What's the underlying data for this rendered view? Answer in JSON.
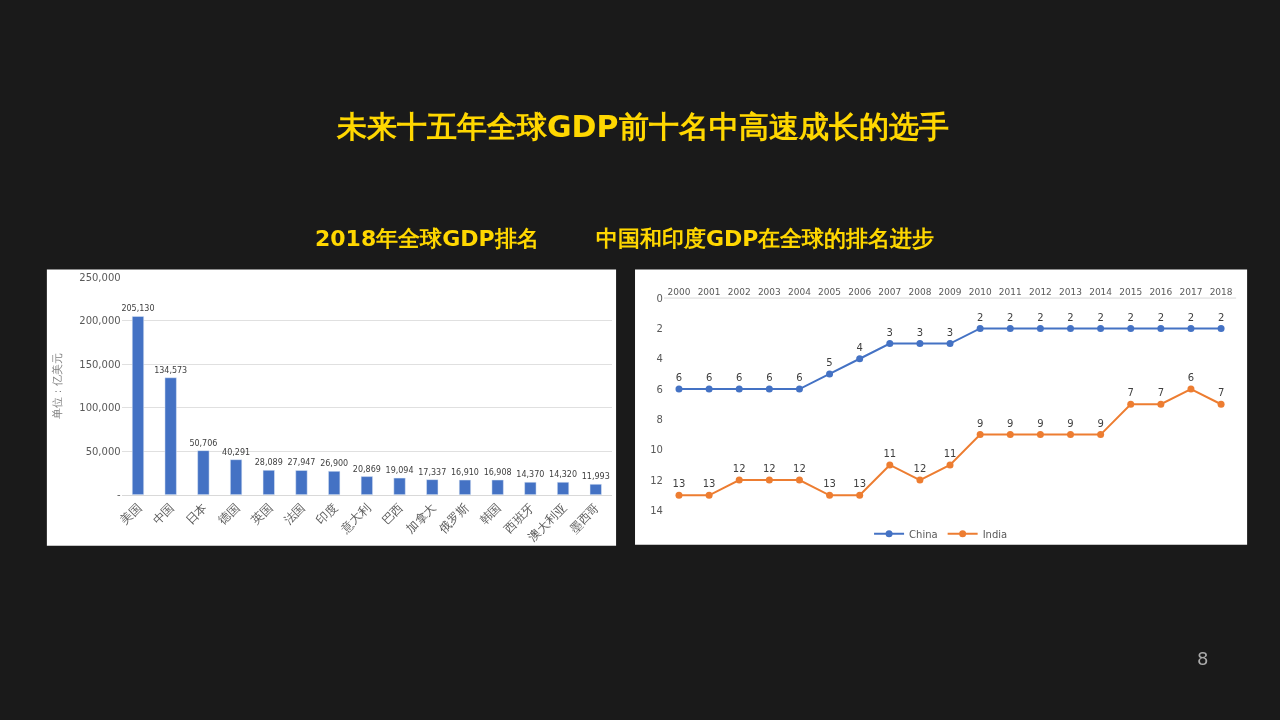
{
  "chart_data": [
    {
      "type": "bar",
      "title": "未来十五年全球GDP前十名中高速成长的选手",
      "subtitle": "2018年全球GDP排名",
      "ylabel": "单位：亿美元",
      "categories": [
        "美国",
        "中国",
        "日本",
        "德国",
        "英国",
        "法国",
        "印度",
        "意大利",
        "巴西",
        "加拿大",
        "俄罗斯",
        "韩国",
        "西班牙",
        "澳大利亚",
        "墨西哥"
      ],
      "values": [
        205130,
        134573,
        50706,
        40291,
        28089,
        27947,
        26900,
        20869,
        19094,
        17337,
        16910,
        16908,
        14370,
        14320,
        11993
      ],
      "value_labels": [
        "205,130",
        "134,573",
        "50,706",
        "40,291",
        "28,089",
        "27,947",
        "26,900",
        "20,869",
        "19,094",
        "17,337",
        "16,910",
        "16,908",
        "14,370",
        "14,320",
        "11,993"
      ],
      "color": "#4472c4",
      "ylim": [
        0,
        250000
      ],
      "yticks": [
        {
          "value": 0,
          "label": "-"
        },
        {
          "value": 50000,
          "label": "50,000"
        },
        {
          "value": 100000,
          "label": "100,000"
        },
        {
          "value": 150000,
          "label": "150,000"
        },
        {
          "value": 200000,
          "label": "200,000"
        },
        {
          "value": 250000,
          "label": "250,000"
        }
      ],
      "grid": "y"
    },
    {
      "type": "line",
      "title": "中国和印度GDP在全球的排名进步",
      "categories": [
        "2000",
        "2001",
        "2002",
        "2003",
        "2004",
        "2005",
        "2006",
        "2007",
        "2008",
        "2009",
        "2010",
        "2011",
        "2012",
        "2013",
        "2014",
        "2015",
        "2016",
        "2017",
        "2018"
      ],
      "series": [
        {
          "name": "China",
          "color": "#4472c4",
          "values": [
            6,
            6,
            6,
            6,
            6,
            5,
            4,
            3,
            3,
            3,
            2,
            2,
            2,
            2,
            2,
            2,
            2,
            2,
            2
          ]
        },
        {
          "name": "India",
          "color": "#ed7d31",
          "values": [
            13,
            13,
            12,
            12,
            12,
            13,
            13,
            11,
            12,
            11,
            9,
            9,
            9,
            9,
            9,
            7,
            7,
            6,
            7
          ]
        }
      ],
      "ylim": [
        14,
        0
      ],
      "yticks": [
        0,
        2,
        4,
        6,
        8,
        10,
        12,
        14
      ],
      "data_labels": true,
      "marker": "circle",
      "line_style": "solid",
      "legend": "bottom",
      "grid": false,
      "annotations": [
        "8"
      ]
    }
  ]
}
